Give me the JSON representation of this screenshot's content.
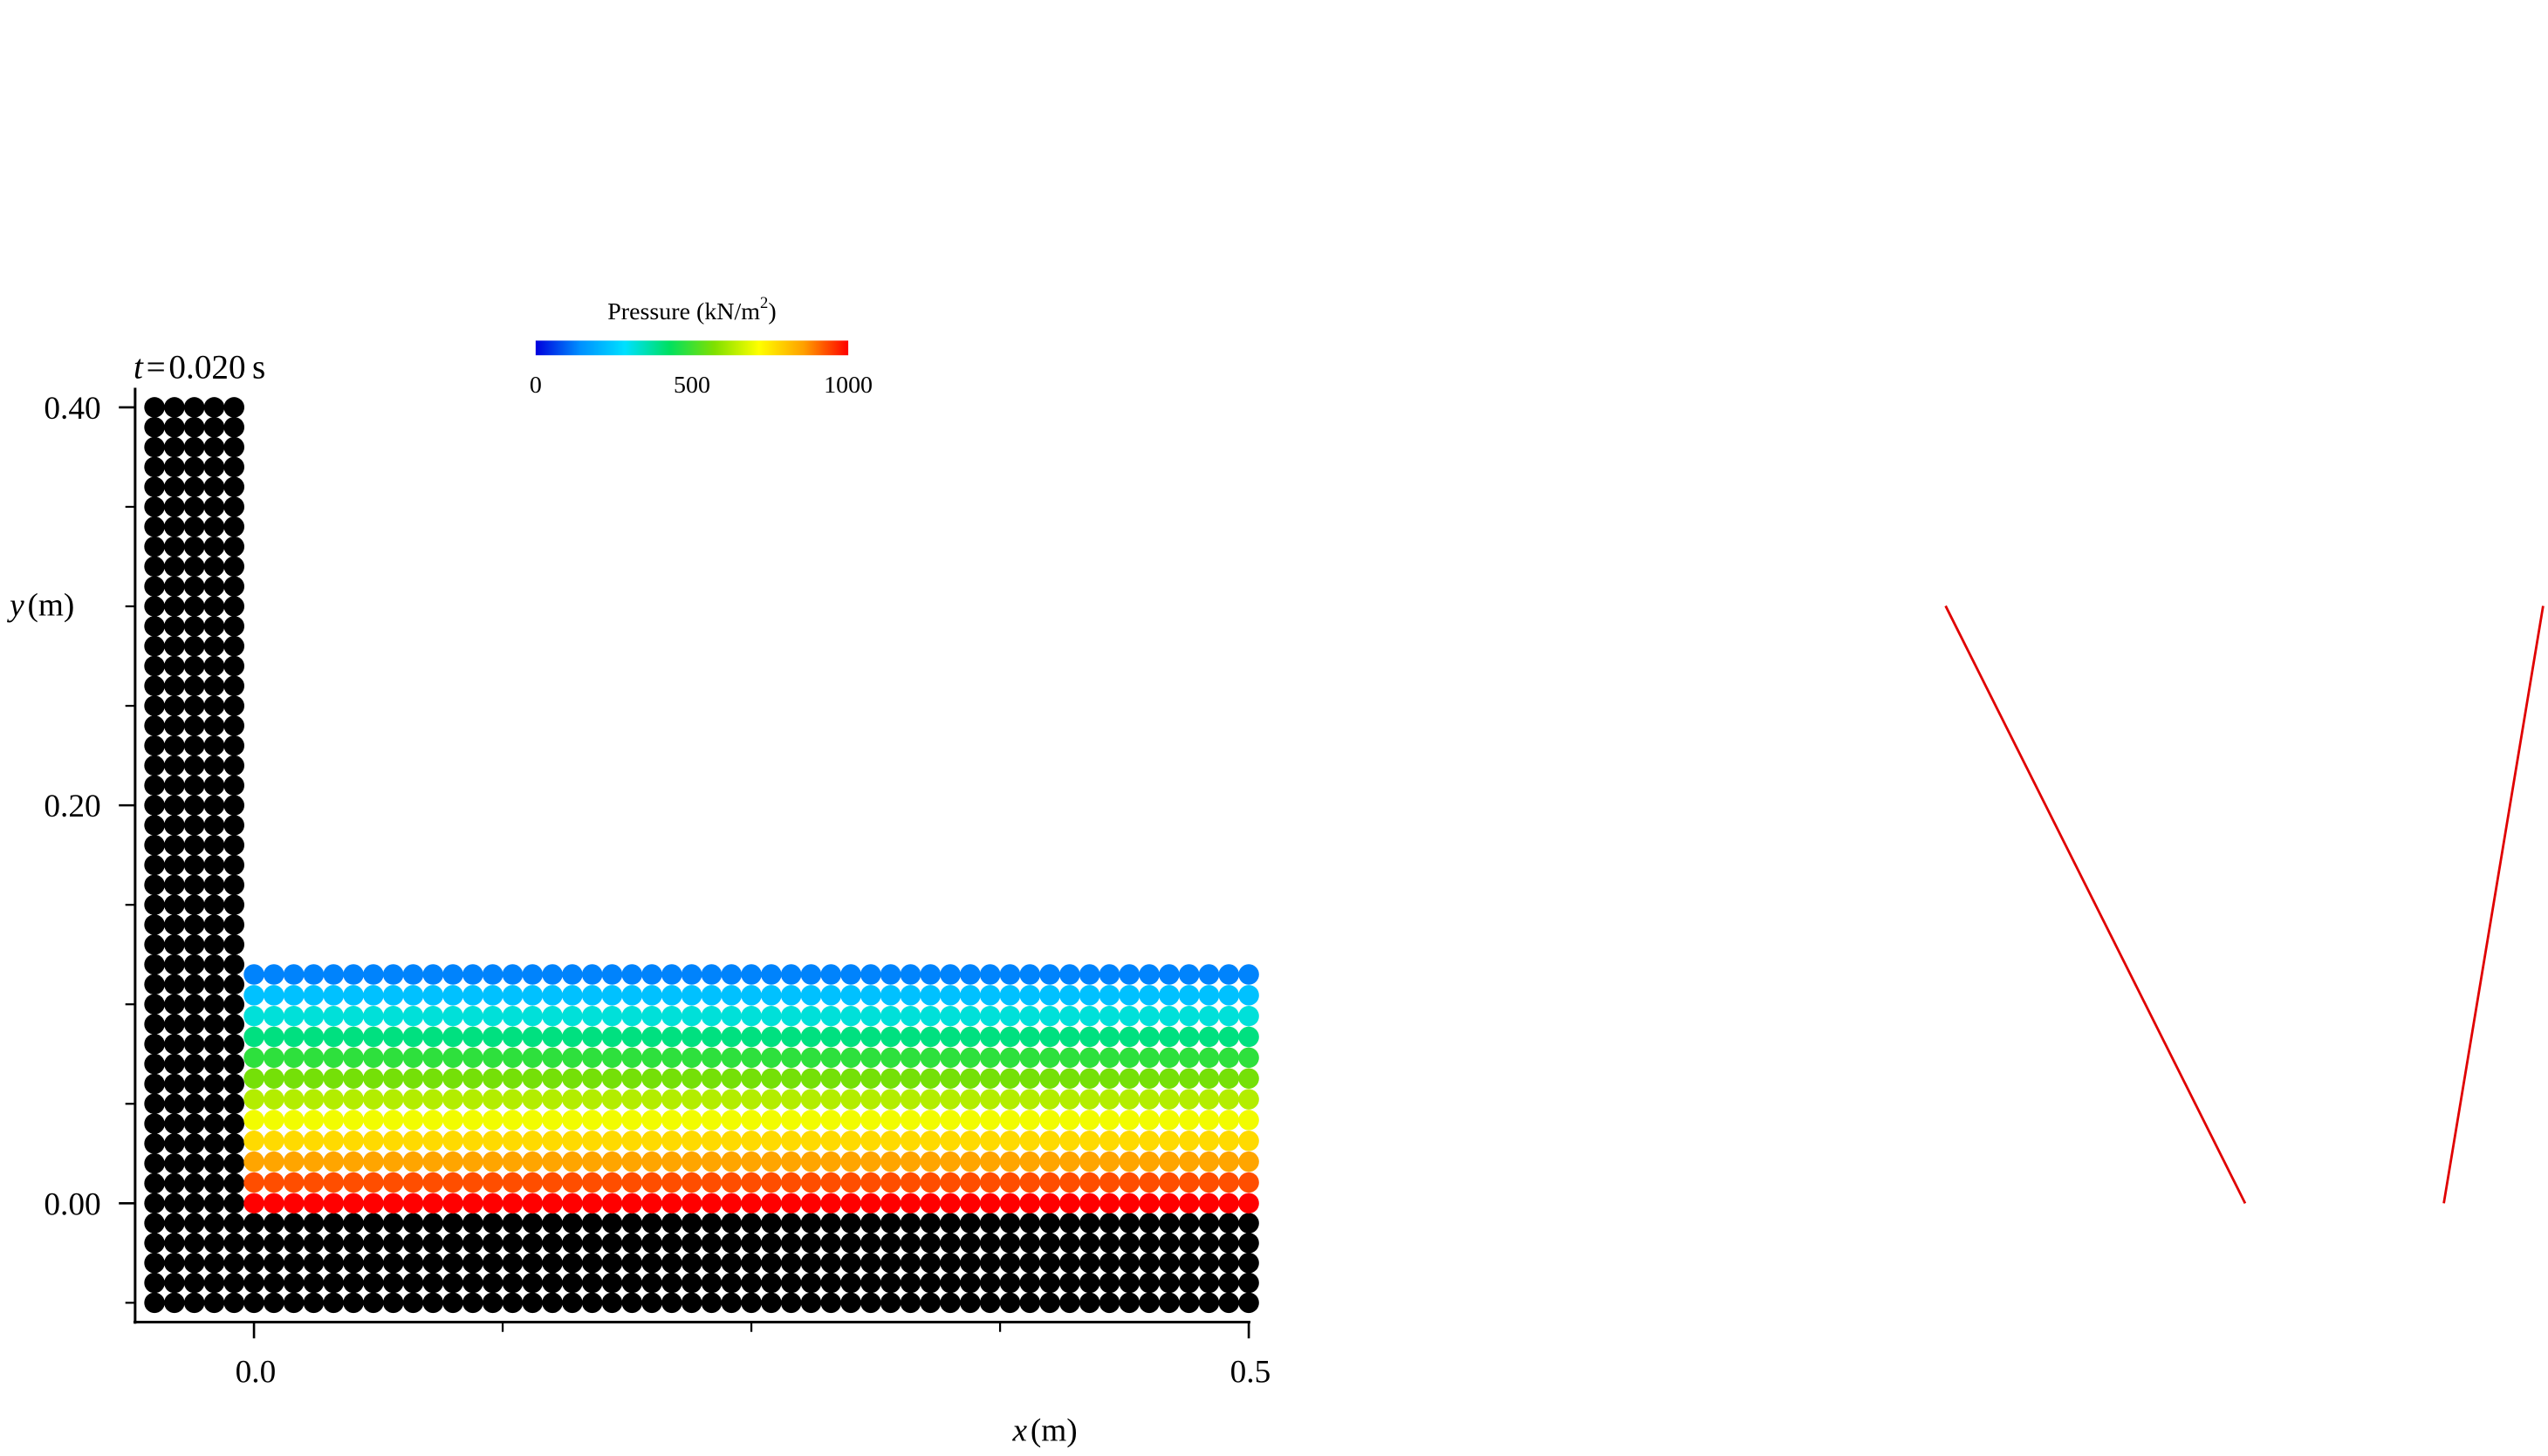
{
  "chart_data": {
    "type": "scatter",
    "time_label": {
      "var": "t",
      "value": "0.020",
      "unit": "s"
    },
    "xaxis": {
      "var": "x",
      "unit": "(m)",
      "range": [
        -0.06,
        0.5
      ],
      "ticks": [
        0.0,
        0.5
      ],
      "tick_labels": [
        "0.0",
        "0.5"
      ],
      "minor_ticks": [
        0.125,
        0.25,
        0.375
      ]
    },
    "yaxis": {
      "var": "y",
      "unit": "(m)",
      "range": [
        -0.06,
        0.4
      ],
      "ticks": [
        0.0,
        0.2,
        0.4
      ],
      "tick_labels": [
        "0.00",
        "0.20",
        "0.40"
      ],
      "minor_ticks": [
        -0.05,
        0.05,
        0.1,
        0.15,
        0.25,
        0.3,
        0.35
      ]
    },
    "colorbar": {
      "title": "Pressure (kN/m",
      "title_sup": "2",
      "title_end": ")",
      "min": 0,
      "max": 1000,
      "tick_labels": [
        "0",
        "500",
        "1000"
      ],
      "colors": [
        "#0000dd",
        "#0090ff",
        "#00e0ff",
        "#00e060",
        "#7fe000",
        "#ffff00",
        "#ffa000",
        "#ff0000"
      ]
    },
    "wall_particles": {
      "color": "#000000",
      "dx": 0.01,
      "left_wall": {
        "x": [
          -0.05,
          -0.01
        ],
        "y": [
          -0.05,
          0.4
        ]
      },
      "floor": {
        "x": [
          0.0,
          0.5
        ],
        "y": [
          -0.05,
          -0.01
        ]
      }
    },
    "fluid_particles": {
      "dx": 0.01,
      "x": [
        0.0,
        0.5
      ],
      "y": [
        0.0,
        0.115
      ],
      "rows": 12,
      "pressure_by_row_bottom_to_top": [
        1000,
        930,
        850,
        770,
        700,
        630,
        560,
        480,
        400,
        320,
        230,
        130
      ]
    },
    "red_lines": [
      {
        "color": "#e00000",
        "points": [
          [
            1195,
            372
          ],
          [
            1379,
            739
          ]
        ]
      },
      {
        "color": "#e00000",
        "points": [
          [
            1501,
            739
          ],
          [
            1562,
            372
          ]
        ]
      }
    ]
  }
}
